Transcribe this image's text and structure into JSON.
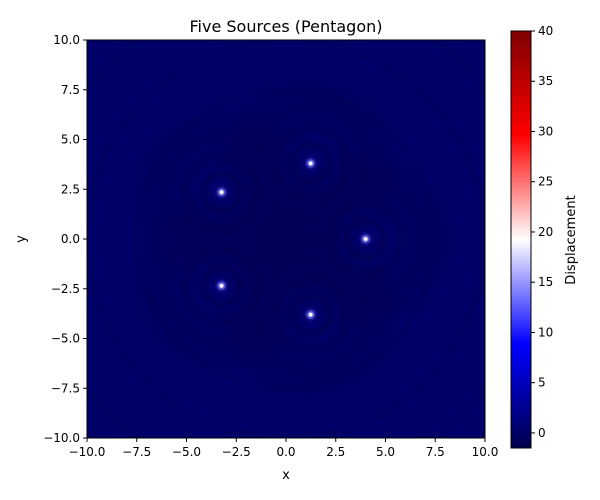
{
  "chart_data": {
    "type": "heatmap",
    "title": "Five Sources (Pentagon)",
    "xlabel": "x",
    "ylabel": "y",
    "xlim": [
      -10,
      10
    ],
    "ylim": [
      -10,
      10
    ],
    "xticks": [
      -10,
      -7.5,
      -5,
      -2.5,
      0,
      2.5,
      5,
      7.5,
      10
    ],
    "yticks": [
      -10,
      -7.5,
      -5,
      -2.5,
      0,
      2.5,
      5,
      7.5,
      10
    ],
    "xtick_labels": [
      "−10.0",
      "−7.5",
      "−5.0",
      "−2.5",
      "0.0",
      "2.5",
      "5.0",
      "7.5",
      "10.0"
    ],
    "ytick_labels": [
      "−10.0",
      "−7.5",
      "−5.0",
      "−2.5",
      "0.0",
      "2.5",
      "5.0",
      "7.5",
      "10.0"
    ],
    "sources": [
      {
        "x": 4.0,
        "y": 0.0
      },
      {
        "x": 1.24,
        "y": 3.8
      },
      {
        "x": -3.24,
        "y": 2.35
      },
      {
        "x": -3.24,
        "y": -2.35
      },
      {
        "x": 1.24,
        "y": -3.8
      }
    ],
    "colorbar": {
      "label": "Displacement",
      "vmin": -1.5,
      "vmax": 40,
      "ticks": [
        0,
        5,
        10,
        15,
        20,
        25,
        30,
        35,
        40
      ],
      "tick_labels": [
        "0",
        "5",
        "10",
        "15",
        "20",
        "25",
        "30",
        "35",
        "40"
      ],
      "colormap": "seismic",
      "colors": [
        "#00004c",
        "#0000ff",
        "#ffffff",
        "#ff0000",
        "#7f0000"
      ]
    },
    "grid": false,
    "legend": "none"
  }
}
